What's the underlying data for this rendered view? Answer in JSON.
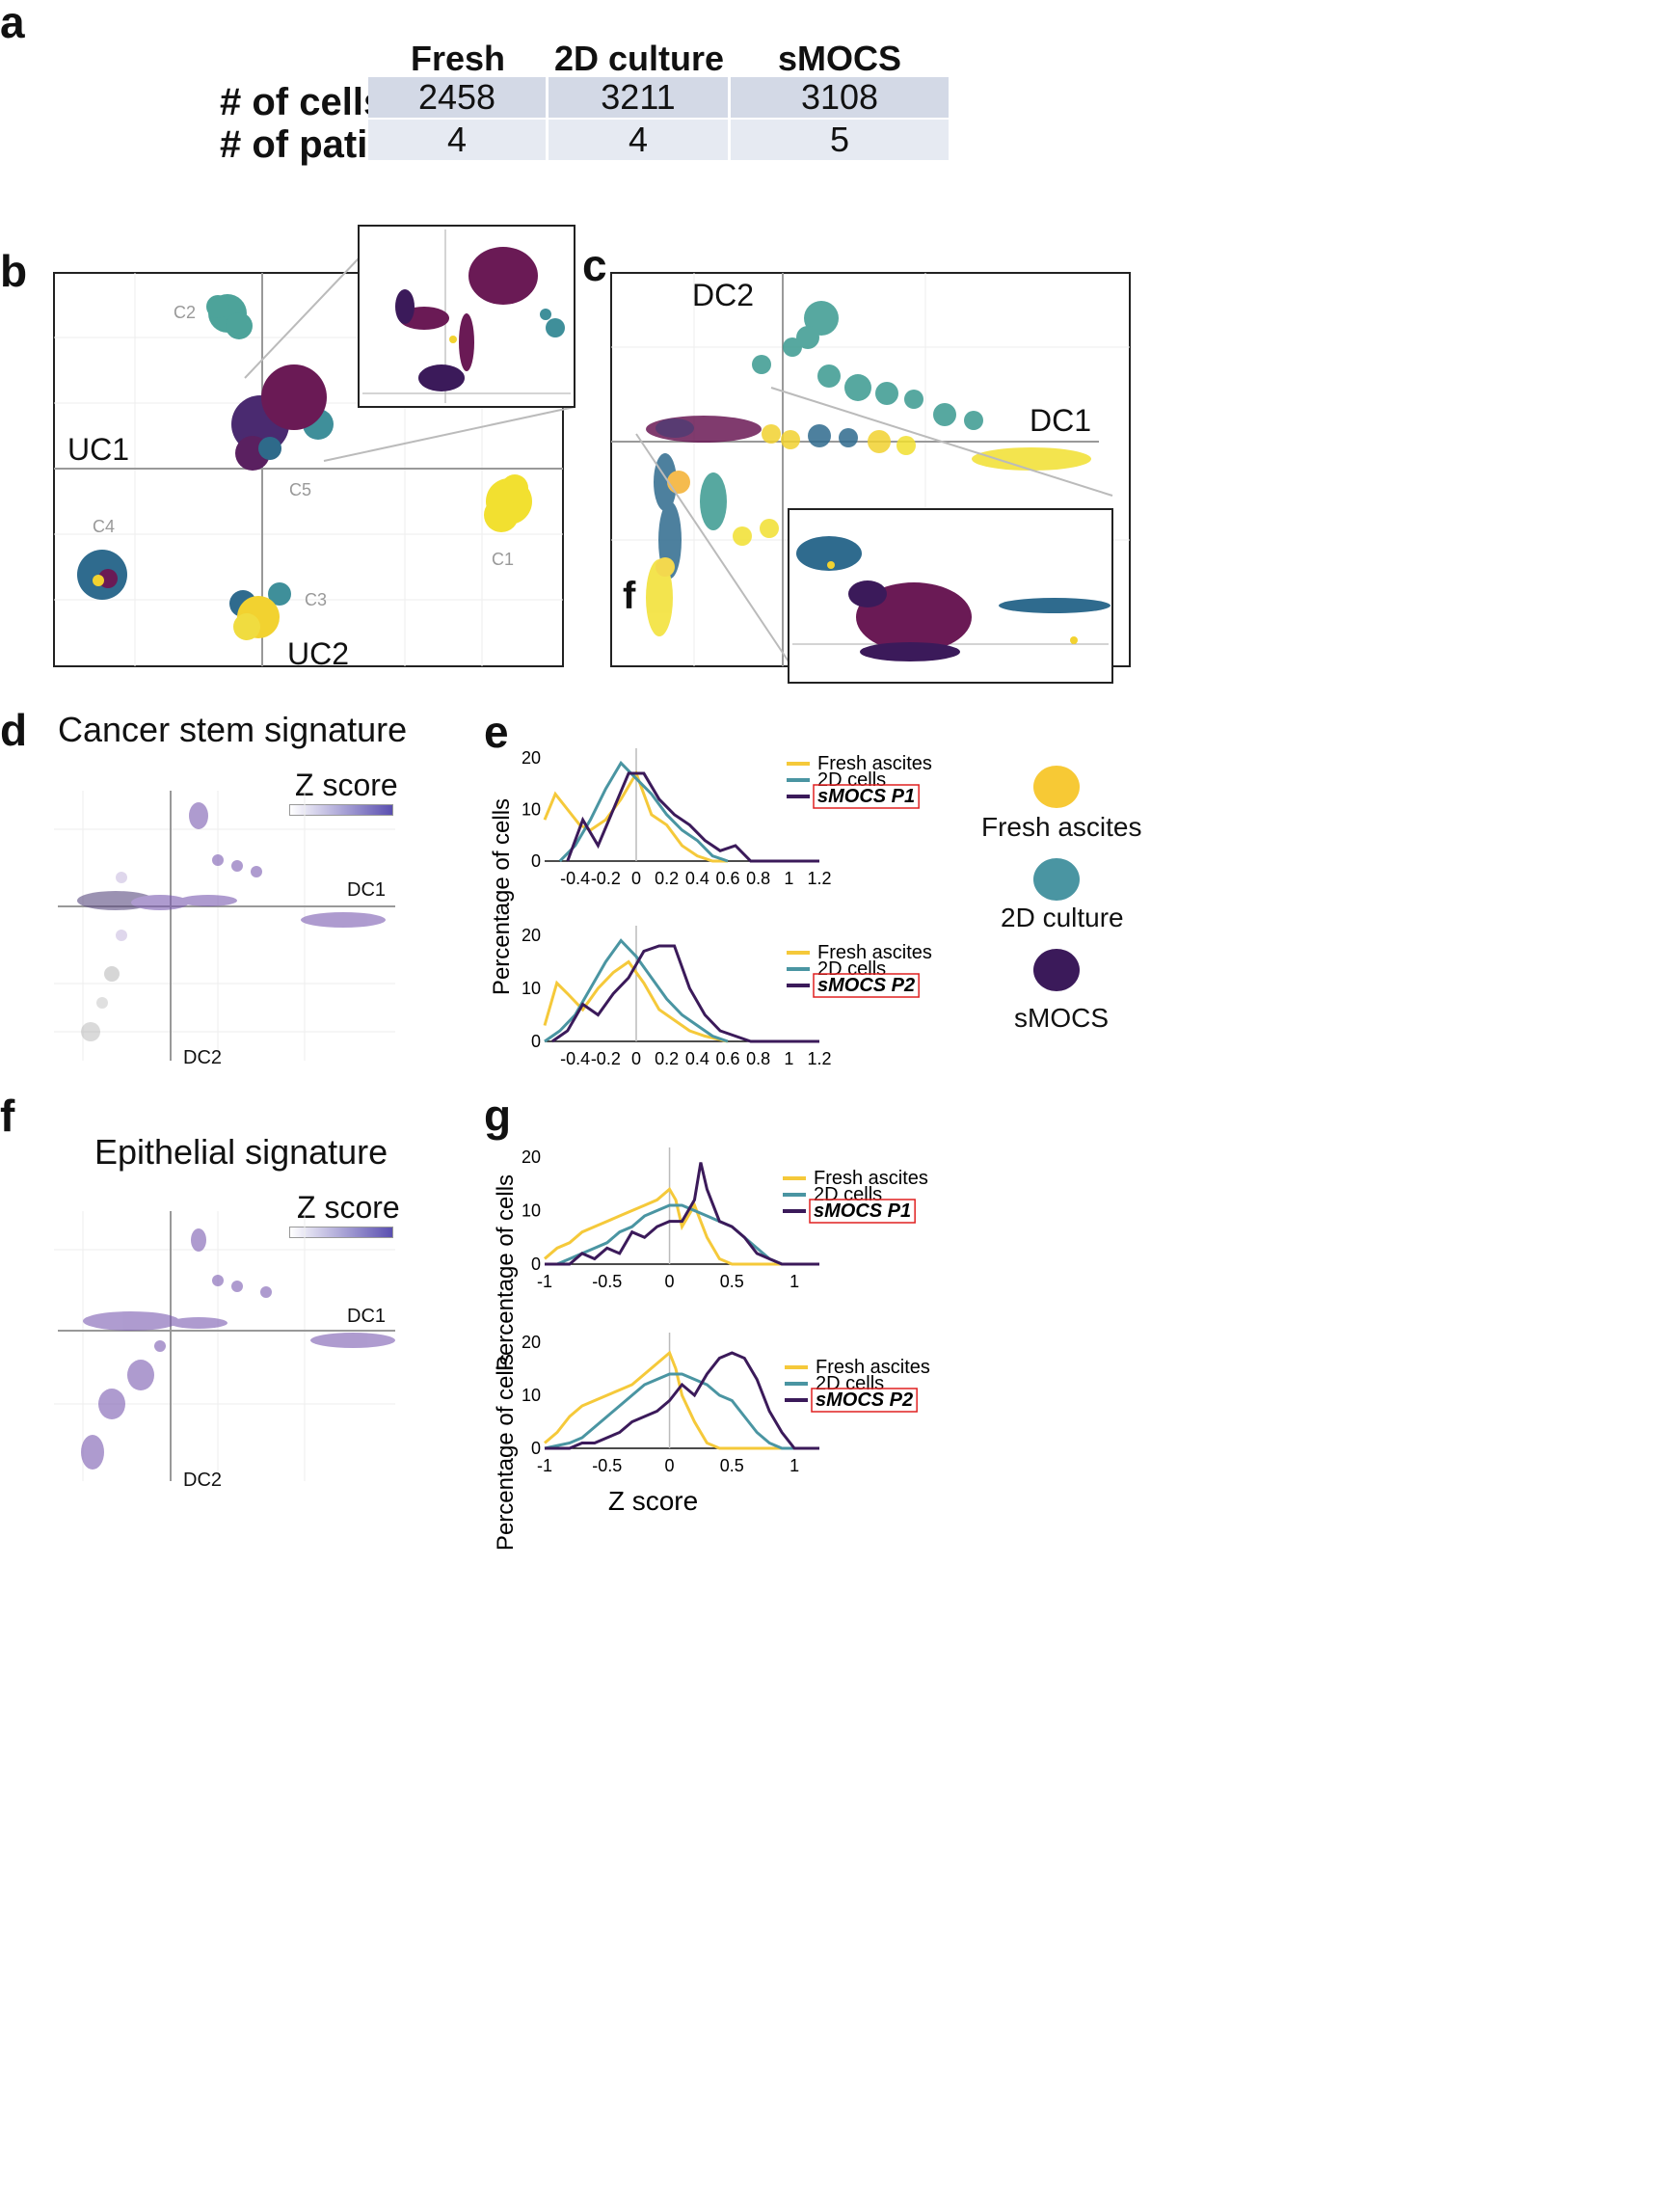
{
  "panels": {
    "a": "a",
    "b": "b",
    "c": "c",
    "d": "d",
    "e": "e",
    "f": "f",
    "g": "g",
    "f_inset": "f"
  },
  "table": {
    "columns": [
      "Fresh ascites",
      "2D culture",
      "sMOCS"
    ],
    "rows": [
      {
        "label": "# of cells",
        "values": [
          "2458",
          "3211",
          "3108"
        ]
      },
      {
        "label": "# of patients",
        "values": [
          "4",
          "4",
          "5"
        ]
      }
    ]
  },
  "colors": {
    "fresh": "#f2d230",
    "culture2d": "#3f8f9a",
    "smocs": "#3b1a5a",
    "zmax": "#5a4fb0",
    "cell_dark": "#d3d9e6",
    "cell_light": "#e6eaf2"
  },
  "panel_b": {
    "axis_x": "UC1",
    "axis_y": "UC2",
    "clusters": [
      "C1",
      "C2",
      "C3",
      "C4",
      "C5"
    ]
  },
  "panel_c": {
    "axis_x": "DC1",
    "axis_y": "DC2"
  },
  "panel_d": {
    "title": "Cancer stem signature",
    "zscore": "Z score",
    "axis_x": "DC1",
    "axis_y": "DC2"
  },
  "panel_f": {
    "title": "Epithelial signature",
    "zscore": "Z score",
    "axis_x": "DC1",
    "axis_y": "DC2"
  },
  "legend": {
    "fresh": "Fresh ascites",
    "culture2d": "2D culture",
    "smocs": "sMOCS"
  },
  "chart_data": [
    {
      "id": "e1",
      "type": "line",
      "ylabel": "Percentage of cells",
      "ylim": [
        0,
        20
      ],
      "yticks": [
        "0",
        "10",
        "20"
      ],
      "xlim": [
        -0.6,
        1.2
      ],
      "xticks": [
        "-0.4",
        "-0.2",
        "0",
        "0.2",
        "0.4",
        "0.6",
        "0.8",
        "1",
        "1.2"
      ],
      "legend": [
        "Fresh ascites",
        "2D cells",
        "sMOCS P1"
      ],
      "series": [
        {
          "name": "Fresh ascites",
          "x": [
            -0.6,
            -0.53,
            -0.45,
            -0.37,
            -0.3,
            -0.2,
            -0.1,
            0,
            0.1,
            0.2,
            0.3,
            0.4,
            0.5,
            0.6
          ],
          "y": [
            8,
            13,
            10,
            7,
            6,
            8,
            12,
            17,
            9,
            7,
            3,
            1,
            0,
            0
          ]
        },
        {
          "name": "2D cells",
          "x": [
            -0.5,
            -0.4,
            -0.3,
            -0.2,
            -0.1,
            0,
            0.1,
            0.2,
            0.3,
            0.4,
            0.5,
            0.6
          ],
          "y": [
            0,
            3,
            8,
            14,
            19,
            16,
            13,
            9,
            6,
            4,
            1,
            0
          ]
        },
        {
          "name": "sMOCS P1",
          "x": [
            -0.45,
            -0.35,
            -0.25,
            -0.15,
            -0.05,
            0.05,
            0.15,
            0.25,
            0.35,
            0.45,
            0.55,
            0.65,
            0.75,
            0.85,
            1.0,
            1.2
          ],
          "y": [
            0,
            8,
            3,
            10,
            17,
            17,
            12,
            9,
            7,
            4,
            2,
            3,
            0,
            0,
            0,
            0
          ]
        }
      ]
    },
    {
      "id": "e2",
      "type": "line",
      "ylabel": "Percentage of cells",
      "ylim": [
        0,
        20
      ],
      "yticks": [
        "0",
        "10",
        "20"
      ],
      "xlim": [
        -0.6,
        1.2
      ],
      "xticks": [
        "-0.4",
        "-0.2",
        "0",
        "0.2",
        "0.4",
        "0.6",
        "0.8",
        "1",
        "1.2"
      ],
      "legend": [
        "Fresh ascites",
        "2D cells",
        "sMOCS P2"
      ],
      "series": [
        {
          "name": "Fresh ascites",
          "x": [
            -0.6,
            -0.52,
            -0.45,
            -0.35,
            -0.25,
            -0.15,
            -0.05,
            0.05,
            0.15,
            0.25,
            0.35,
            0.45,
            0.6
          ],
          "y": [
            3,
            11,
            9,
            6,
            10,
            13,
            15,
            11,
            6,
            4,
            2,
            1,
            0
          ]
        },
        {
          "name": "2D cells",
          "x": [
            -0.6,
            -0.5,
            -0.4,
            -0.3,
            -0.2,
            -0.1,
            0,
            0.1,
            0.2,
            0.3,
            0.4,
            0.5,
            0.6
          ],
          "y": [
            0,
            2,
            5,
            10,
            15,
            19,
            16,
            12,
            8,
            5,
            3,
            1,
            0
          ]
        },
        {
          "name": "sMOCS P2",
          "x": [
            -0.55,
            -0.45,
            -0.35,
            -0.25,
            -0.15,
            -0.05,
            0.05,
            0.15,
            0.25,
            0.35,
            0.45,
            0.55,
            0.65,
            0.75,
            0.9,
            1.2
          ],
          "y": [
            0,
            2,
            7,
            5,
            9,
            12,
            17,
            18,
            18,
            10,
            5,
            2,
            1,
            0,
            0,
            0
          ]
        }
      ]
    },
    {
      "id": "g1",
      "type": "line",
      "ylabel": "Percentage of cells",
      "ylim": [
        0,
        20
      ],
      "yticks": [
        "0",
        "10",
        "20"
      ],
      "xlim": [
        -1,
        1.2
      ],
      "xticks": [
        "-1",
        "-0.5",
        "0",
        "0.5",
        "1"
      ],
      "legend": [
        "Fresh ascites",
        "2D cells",
        "sMOCS P1"
      ],
      "series": [
        {
          "name": "Fresh ascites",
          "x": [
            -1,
            -0.9,
            -0.8,
            -0.7,
            -0.6,
            -0.5,
            -0.4,
            -0.3,
            -0.2,
            -0.1,
            0,
            0.05,
            0.1,
            0.2,
            0.3,
            0.4,
            0.5,
            0.7,
            1.0
          ],
          "y": [
            1,
            3,
            4,
            6,
            7,
            8,
            9,
            10,
            11,
            12,
            14,
            12,
            7,
            11,
            5,
            1,
            0,
            0,
            0
          ]
        },
        {
          "name": "2D cells",
          "x": [
            -1,
            -0.9,
            -0.8,
            -0.7,
            -0.6,
            -0.5,
            -0.4,
            -0.3,
            -0.2,
            -0.1,
            0,
            0.1,
            0.2,
            0.3,
            0.4,
            0.5,
            0.6,
            0.7,
            0.8,
            0.9,
            1.0
          ],
          "y": [
            0,
            0,
            1,
            2,
            3,
            4,
            6,
            7,
            9,
            10,
            11,
            11,
            10,
            9,
            8,
            7,
            5,
            3,
            1,
            0,
            0
          ]
        },
        {
          "name": "sMOCS P1",
          "x": [
            -1,
            -0.8,
            -0.7,
            -0.6,
            -0.5,
            -0.4,
            -0.3,
            -0.2,
            -0.1,
            0,
            0.1,
            0.2,
            0.25,
            0.3,
            0.4,
            0.5,
            0.6,
            0.7,
            0.8,
            0.9,
            1.0,
            1.2
          ],
          "y": [
            0,
            0,
            2,
            1,
            3,
            2,
            6,
            5,
            7,
            8,
            8,
            12,
            19,
            14,
            8,
            7,
            5,
            2,
            1,
            0,
            0,
            0
          ]
        }
      ]
    },
    {
      "id": "g2",
      "type": "line",
      "ylabel": "Percentage of cells",
      "ylim": [
        0,
        20
      ],
      "yticks": [
        "0",
        "10",
        "20"
      ],
      "xlim": [
        -1,
        1.2
      ],
      "xticks": [
        "-1",
        "-0.5",
        "0",
        "0.5",
        "1"
      ],
      "xlabel": "Z score",
      "legend": [
        "Fresh ascites",
        "2D cells",
        "sMOCS P2"
      ],
      "series": [
        {
          "name": "Fresh ascites",
          "x": [
            -1,
            -0.9,
            -0.8,
            -0.7,
            -0.6,
            -0.5,
            -0.4,
            -0.3,
            -0.2,
            -0.1,
            0,
            0.05,
            0.1,
            0.2,
            0.3,
            0.4,
            0.5,
            0.7,
            1.0
          ],
          "y": [
            1,
            3,
            6,
            8,
            9,
            10,
            11,
            12,
            14,
            16,
            18,
            15,
            10,
            5,
            1,
            0,
            0,
            0,
            0
          ]
        },
        {
          "name": "2D cells",
          "x": [
            -1,
            -0.8,
            -0.7,
            -0.6,
            -0.5,
            -0.4,
            -0.3,
            -0.2,
            -0.1,
            0,
            0.1,
            0.2,
            0.3,
            0.4,
            0.5,
            0.6,
            0.7,
            0.8,
            0.9,
            1.0
          ],
          "y": [
            0,
            1,
            2,
            4,
            6,
            8,
            10,
            12,
            13,
            14,
            14,
            13,
            12,
            10,
            9,
            6,
            3,
            1,
            0,
            0
          ]
        },
        {
          "name": "sMOCS P2",
          "x": [
            -1,
            -0.8,
            -0.7,
            -0.6,
            -0.5,
            -0.4,
            -0.3,
            -0.2,
            -0.1,
            0,
            0.1,
            0.2,
            0.3,
            0.4,
            0.5,
            0.6,
            0.7,
            0.8,
            0.9,
            1.0,
            1.2
          ],
          "y": [
            0,
            0,
            1,
            1,
            2,
            3,
            5,
            6,
            7,
            9,
            12,
            10,
            14,
            17,
            18,
            17,
            13,
            7,
            3,
            0,
            0
          ]
        }
      ]
    }
  ]
}
